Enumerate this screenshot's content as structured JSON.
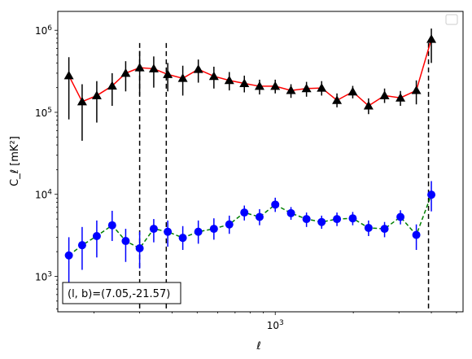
{
  "chart_data": {
    "type": "line",
    "x_scale": "log",
    "y_scale": "log",
    "xlim": [
      145,
      5300
    ],
    "ylim": [
      370,
      1700000
    ],
    "xlabel": "ℓ",
    "ylabel": "C_ℓ  [mK²]",
    "x_tick_labels": [
      {
        "value": 1000,
        "mantissa": "10",
        "exponent": "3"
      }
    ],
    "y_tick_labels": [
      {
        "value": 1000,
        "mantissa": "10",
        "exponent": "3"
      },
      {
        "value": 10000,
        "mantissa": "10",
        "exponent": "4"
      },
      {
        "value": 100000,
        "mantissa": "10",
        "exponent": "5"
      },
      {
        "value": 1000000,
        "mantissa": "10",
        "exponent": "6"
      }
    ],
    "grid": false,
    "legend": {
      "placement": "top-right",
      "entries": []
    },
    "annotation": "(l, b)=(7.05,-21.57)",
    "vertical_lines_x": [
      300,
      380,
      3900
    ],
    "series": [
      {
        "color": "#ff0000",
        "marker": "triangle",
        "marker_color": "#000000",
        "errorbar_color": "#000000",
        "line_style": "solid",
        "points": [
          {
            "x": 160,
            "y": 280000,
            "lo": 82000,
            "hi": 470000
          },
          {
            "x": 180,
            "y": 135000,
            "lo": 45000,
            "hi": 220000
          },
          {
            "x": 205,
            "y": 160000,
            "lo": 75000,
            "hi": 240000
          },
          {
            "x": 235,
            "y": 210000,
            "lo": 120000,
            "hi": 300000
          },
          {
            "x": 265,
            "y": 300000,
            "lo": 180000,
            "hi": 420000
          },
          {
            "x": 300,
            "y": 350000,
            "lo": 160000,
            "hi": 560000
          },
          {
            "x": 340,
            "y": 340000,
            "lo": 200000,
            "hi": 480000
          },
          {
            "x": 385,
            "y": 290000,
            "lo": 180000,
            "hi": 400000
          },
          {
            "x": 440,
            "y": 260000,
            "lo": 160000,
            "hi": 370000
          },
          {
            "x": 505,
            "y": 335000,
            "lo": 230000,
            "hi": 440000
          },
          {
            "x": 580,
            "y": 275000,
            "lo": 195000,
            "hi": 360000
          },
          {
            "x": 665,
            "y": 245000,
            "lo": 185000,
            "hi": 310000
          },
          {
            "x": 760,
            "y": 225000,
            "lo": 175000,
            "hi": 280000
          },
          {
            "x": 870,
            "y": 208000,
            "lo": 165000,
            "hi": 250000
          },
          {
            "x": 1000,
            "y": 208000,
            "lo": 170000,
            "hi": 250000
          },
          {
            "x": 1150,
            "y": 185000,
            "lo": 150000,
            "hi": 220000
          },
          {
            "x": 1320,
            "y": 195000,
            "lo": 155000,
            "hi": 235000
          },
          {
            "x": 1510,
            "y": 198000,
            "lo": 160000,
            "hi": 240000
          },
          {
            "x": 1730,
            "y": 140000,
            "lo": 115000,
            "hi": 170000
          },
          {
            "x": 1990,
            "y": 178000,
            "lo": 148000,
            "hi": 210000
          },
          {
            "x": 2290,
            "y": 120000,
            "lo": 95000,
            "hi": 148000
          },
          {
            "x": 2640,
            "y": 160000,
            "lo": 130000,
            "hi": 195000
          },
          {
            "x": 3040,
            "y": 150000,
            "lo": 120000,
            "hi": 182000
          },
          {
            "x": 3500,
            "y": 185000,
            "lo": 125000,
            "hi": 245000
          },
          {
            "x": 4000,
            "y": 780000,
            "lo": 400000,
            "hi": 1050000
          }
        ]
      },
      {
        "color": "#008000",
        "marker": "circle",
        "marker_color": "#0000ff",
        "errorbar_color": "#0000ff",
        "line_style": "dashed",
        "points": [
          {
            "x": 160,
            "y": 1800,
            "lo": 700,
            "hi": 3000
          },
          {
            "x": 180,
            "y": 2400,
            "lo": 1200,
            "hi": 4000
          },
          {
            "x": 205,
            "y": 3100,
            "lo": 1700,
            "hi": 4800
          },
          {
            "x": 235,
            "y": 4200,
            "lo": 2700,
            "hi": 6300
          },
          {
            "x": 265,
            "y": 2700,
            "lo": 1500,
            "hi": 3800
          },
          {
            "x": 300,
            "y": 2200,
            "lo": 1250,
            "hi": 3500
          },
          {
            "x": 340,
            "y": 3800,
            "lo": 2600,
            "hi": 5000
          },
          {
            "x": 385,
            "y": 3500,
            "lo": 2300,
            "hi": 4800
          },
          {
            "x": 440,
            "y": 2950,
            "lo": 2100,
            "hi": 4100
          },
          {
            "x": 505,
            "y": 3500,
            "lo": 2500,
            "hi": 4800
          },
          {
            "x": 580,
            "y": 3800,
            "lo": 2800,
            "hi": 5100
          },
          {
            "x": 665,
            "y": 4300,
            "lo": 3300,
            "hi": 5500
          },
          {
            "x": 760,
            "y": 6000,
            "lo": 4800,
            "hi": 7300
          },
          {
            "x": 870,
            "y": 5300,
            "lo": 4200,
            "hi": 6600
          },
          {
            "x": 1000,
            "y": 7500,
            "lo": 6100,
            "hi": 9100
          },
          {
            "x": 1150,
            "y": 5900,
            "lo": 4900,
            "hi": 7000
          },
          {
            "x": 1320,
            "y": 5000,
            "lo": 4000,
            "hi": 6000
          },
          {
            "x": 1510,
            "y": 4600,
            "lo": 3800,
            "hi": 5500
          },
          {
            "x": 1730,
            "y": 5000,
            "lo": 4100,
            "hi": 6000
          },
          {
            "x": 1990,
            "y": 5100,
            "lo": 4200,
            "hi": 6100
          },
          {
            "x": 2290,
            "y": 3900,
            "lo": 3100,
            "hi": 4800
          },
          {
            "x": 2640,
            "y": 3800,
            "lo": 3000,
            "hi": 4600
          },
          {
            "x": 3040,
            "y": 5300,
            "lo": 4300,
            "hi": 6400
          },
          {
            "x": 3500,
            "y": 3200,
            "lo": 2100,
            "hi": 4300
          },
          {
            "x": 4000,
            "y": 9900,
            "lo": 6200,
            "hi": 14500
          }
        ]
      }
    ]
  }
}
